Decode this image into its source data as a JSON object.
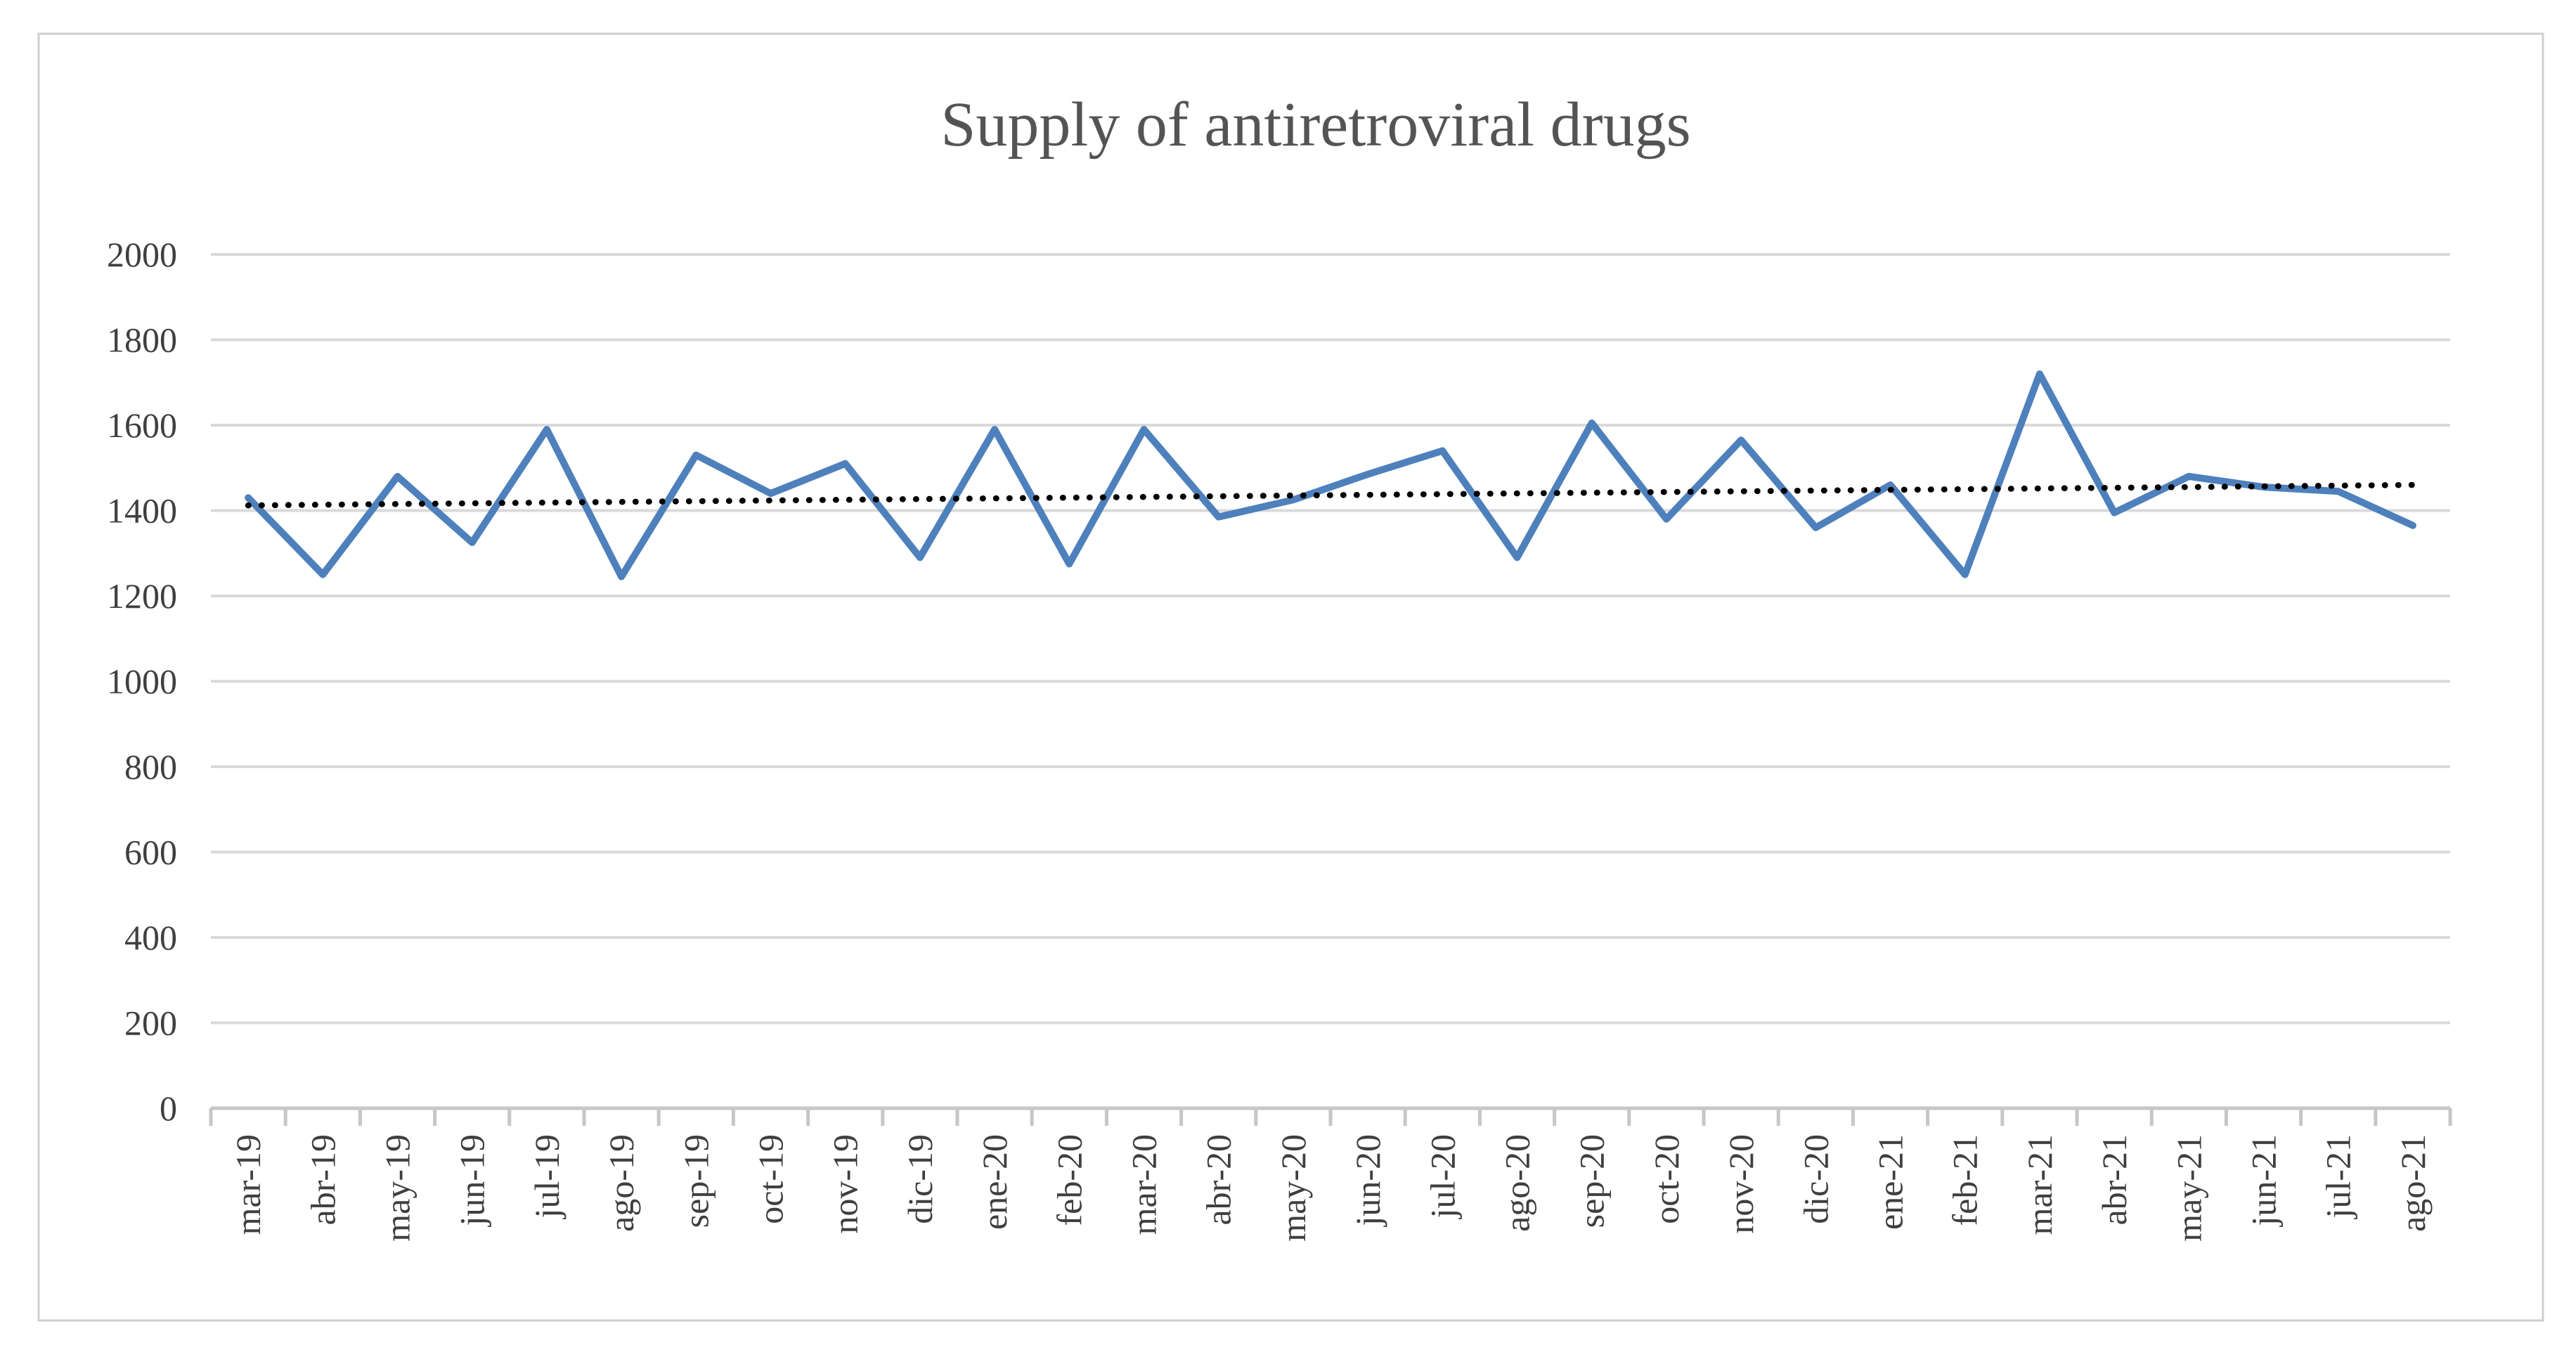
{
  "chart_data": {
    "type": "line",
    "title": "Supply of antiretroviral drugs",
    "categories": [
      "mar-19",
      "abr-19",
      "may-19",
      "jun-19",
      "jul-19",
      "ago-19",
      "sep-19",
      "oct-19",
      "nov-19",
      "dic-19",
      "ene-20",
      "feb-20",
      "mar-20",
      "abr-20",
      "may-20",
      "jun-20",
      "jul-20",
      "ago-20",
      "sep-20",
      "oct-20",
      "nov-20",
      "dic-20",
      "ene-21",
      "feb-21",
      "mar-21",
      "abr-21",
      "may-21",
      "jun-21",
      "jul-21",
      "ago-21"
    ],
    "series": [
      {
        "name": "Supply of antiretroviral drugs",
        "color": "#4E80BC",
        "values": [
          1430,
          1250,
          1480,
          1325,
          1590,
          1245,
          1530,
          1440,
          1510,
          1290,
          1590,
          1275,
          1590,
          1385,
          1425,
          1485,
          1540,
          1290,
          1605,
          1380,
          1565,
          1360,
          1460,
          1250,
          1720,
          1395,
          1480,
          1455,
          1445,
          1365
        ]
      }
    ],
    "trendline": {
      "type": "linear",
      "style": "dotted",
      "color": "#000000",
      "start_value": 1412,
      "end_value": 1460
    },
    "xlabel": "",
    "ylabel": "",
    "ylim": [
      0,
      2000
    ],
    "ytick_step": 200,
    "yticks": [
      0,
      200,
      400,
      600,
      800,
      1000,
      1200,
      1400,
      1600,
      1800,
      2000
    ],
    "grid": "horizontal",
    "legend": "none",
    "x_label_rotation": -90
  },
  "colors": {
    "series_line": "#4E80BC",
    "trendline": "#000000",
    "gridline": "#D9D9D9",
    "axis": "#C6C6C6",
    "tick_label": "#3F3F3F",
    "title": "#545454",
    "chart_border": "#D0CECE",
    "background": "#FFFFFF"
  }
}
